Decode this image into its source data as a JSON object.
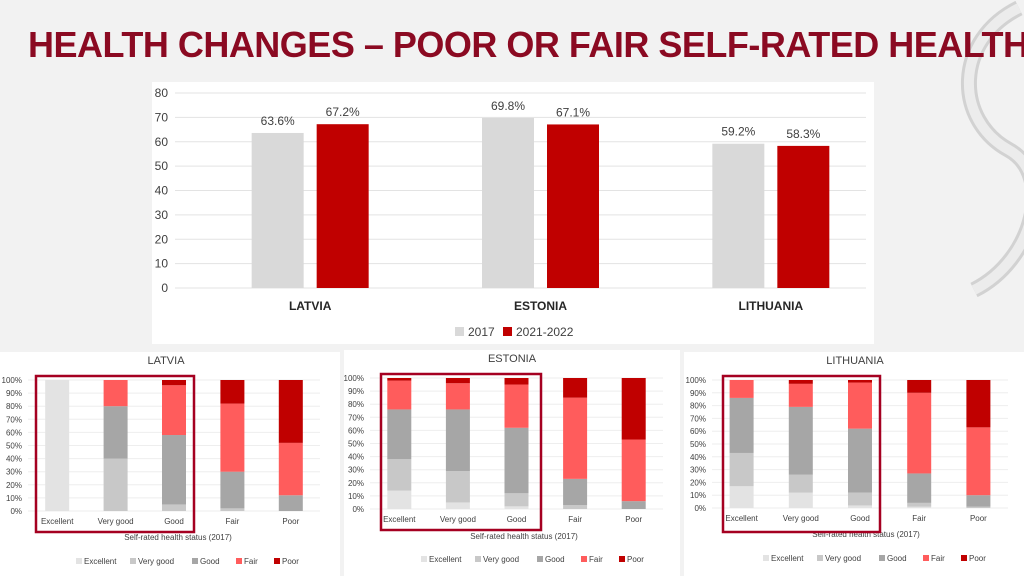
{
  "slide": {
    "title": "HEALTH CHANGES – POOR OR FAIR SELF-RATED HEALTH"
  },
  "colors": {
    "title": "#8b0a22",
    "s2017": "#d9d9d9",
    "s2021": "#c00000",
    "excellent": "#e3e3e3",
    "very_good": "#c8c8c8",
    "good": "#a6a6a6",
    "fair": "#ff5c5c",
    "poor": "#c00000",
    "highlight_box": "#a50021"
  },
  "chart_data": [
    {
      "type": "bar",
      "title": "",
      "categories": [
        "LATVIA",
        "ESTONIA",
        "LITHUANIA"
      ],
      "series": [
        {
          "name": "2017",
          "values": [
            63.6,
            69.8,
            59.2
          ],
          "labels": [
            "63.6%",
            "69.8%",
            "59.2%"
          ]
        },
        {
          "name": "2021-2022",
          "values": [
            67.2,
            67.1,
            58.3
          ],
          "labels": [
            "67.2%",
            "67.1%",
            "58.3%"
          ]
        }
      ],
      "ylim": [
        0,
        80
      ],
      "yticks": [
        0,
        10,
        20,
        30,
        40,
        50,
        60,
        70,
        80
      ],
      "grid": true,
      "legend": "bottom"
    },
    {
      "type": "bar",
      "stacked": true,
      "title": "LATVIA",
      "xlabel": "Self-rated health status (2017)",
      "categories": [
        "Excellent",
        "Very good",
        "Good",
        "Fair",
        "Poor"
      ],
      "series": [
        {
          "name": "Excellent",
          "values": [
            100,
            0,
            0,
            0,
            0
          ]
        },
        {
          "name": "Very good",
          "values": [
            0,
            40,
            5,
            2,
            0
          ]
        },
        {
          "name": "Good",
          "values": [
            0,
            40,
            53,
            28,
            12
          ]
        },
        {
          "name": "Fair",
          "values": [
            0,
            20,
            38,
            52,
            40
          ]
        },
        {
          "name": "Poor",
          "values": [
            0,
            0,
            4,
            18,
            48
          ]
        }
      ],
      "ylim": [
        0,
        100
      ],
      "yticks": [
        "0%",
        "10%",
        "20%",
        "30%",
        "40%",
        "50%",
        "60%",
        "70%",
        "80%",
        "90%",
        "100%"
      ],
      "highlight_categories": [
        "Excellent",
        "Very good",
        "Good"
      ],
      "legend": "bottom"
    },
    {
      "type": "bar",
      "stacked": true,
      "title": "ESTONIA",
      "xlabel": "Self-rated health status (2017)",
      "categories": [
        "Excellent",
        "Very good",
        "Good",
        "Fair",
        "Poor"
      ],
      "series": [
        {
          "name": "Excellent",
          "values": [
            14,
            5,
            2,
            0,
            0
          ]
        },
        {
          "name": "Very good",
          "values": [
            24,
            24,
            10,
            3,
            0
          ]
        },
        {
          "name": "Good",
          "values": [
            38,
            47,
            50,
            20,
            6
          ]
        },
        {
          "name": "Fair",
          "values": [
            22,
            20,
            33,
            62,
            47
          ]
        },
        {
          "name": "Poor",
          "values": [
            2,
            4,
            5,
            15,
            47
          ]
        }
      ],
      "ylim": [
        0,
        100
      ],
      "yticks": [
        "0%",
        "10%",
        "20%",
        "30%",
        "40%",
        "50%",
        "60%",
        "70%",
        "80%",
        "90%",
        "100%"
      ],
      "highlight_categories": [
        "Excellent",
        "Very good",
        "Good"
      ],
      "legend": "bottom"
    },
    {
      "type": "bar",
      "stacked": true,
      "title": "LITHUANIA",
      "xlabel": "Self-rated health status (2017)",
      "categories": [
        "Excellent",
        "Very good",
        "Good",
        "Fair",
        "Poor"
      ],
      "series": [
        {
          "name": "Excellent",
          "values": [
            17,
            12,
            2,
            1,
            0
          ]
        },
        {
          "name": "Very good",
          "values": [
            26,
            14,
            10,
            3,
            1
          ]
        },
        {
          "name": "Good",
          "values": [
            43,
            53,
            50,
            23,
            9
          ]
        },
        {
          "name": "Fair",
          "values": [
            14,
            18,
            36,
            63,
            53
          ]
        },
        {
          "name": "Poor",
          "values": [
            0,
            3,
            2,
            10,
            37
          ]
        }
      ],
      "ylim": [
        0,
        100
      ],
      "yticks": [
        "0%",
        "10%",
        "20%",
        "30%",
        "40%",
        "50%",
        "60%",
        "70%",
        "80%",
        "90%",
        "100%"
      ],
      "highlight_categories": [
        "Excellent",
        "Very good",
        "Good"
      ],
      "legend": "bottom"
    }
  ]
}
